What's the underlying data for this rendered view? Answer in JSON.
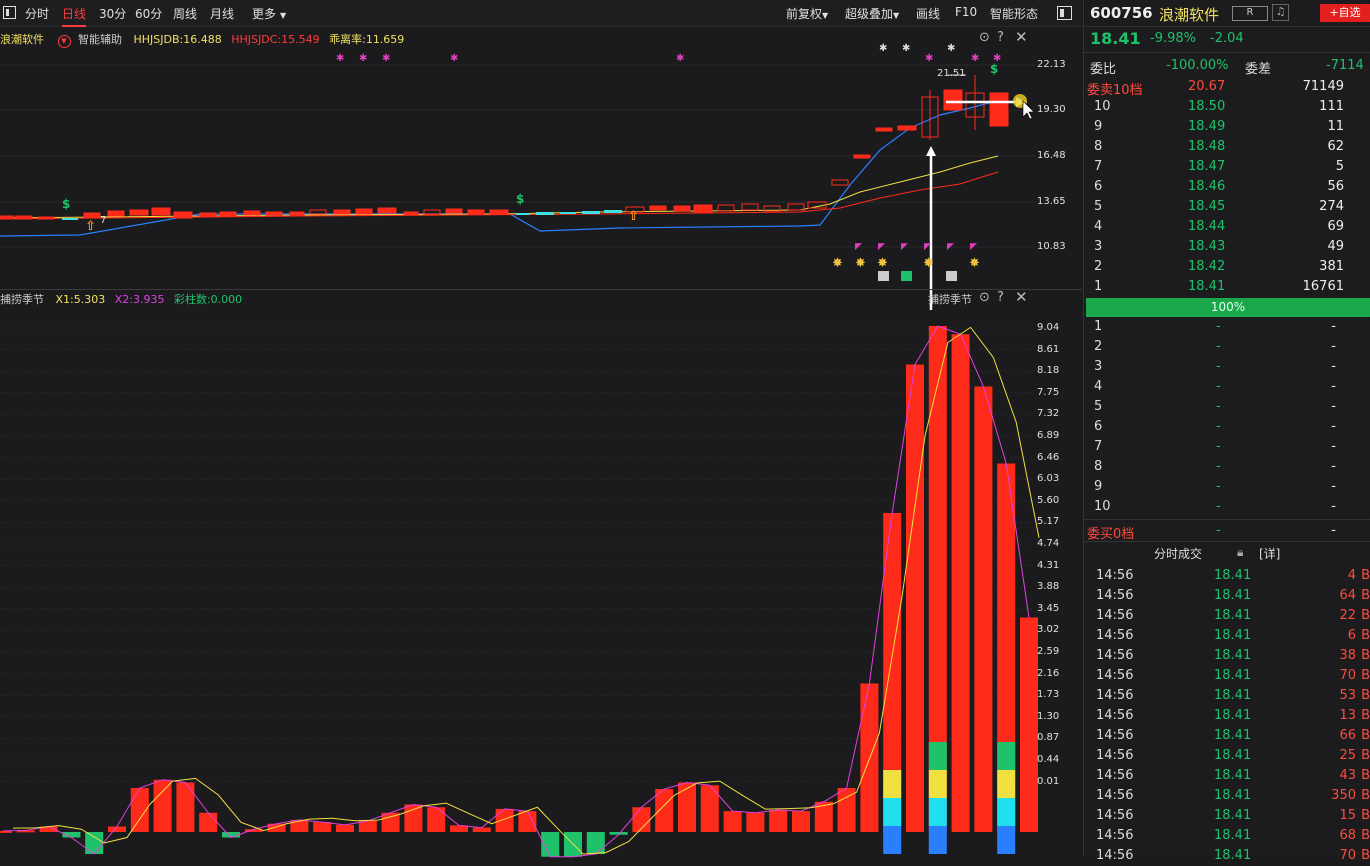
{
  "toolbar": {
    "periods": [
      "分时",
      "日线",
      "30分",
      "60分",
      "周线",
      "月线",
      "更多"
    ],
    "right": [
      "前复权",
      "超级叠加",
      "画线",
      "F10",
      "智能形态"
    ]
  },
  "main_legend": {
    "name": "浪潮软件",
    "assist": "智能辅助",
    "jdb": "HHJSJDB:16.488",
    "jdc": "HHJSJDC:15.549",
    "rate": "乖离率:11.659"
  },
  "main_chart": {
    "peak_label": "21.51",
    "low_label": "7",
    "axis": [
      "22.13",
      "19.30",
      "16.48",
      "13.65",
      "10.83"
    ]
  },
  "sub_legend": {
    "name": "捕捞季节",
    "x1": "X1:5.303",
    "x2": "X2:3.935",
    "colorbars": "彩柱数:0.000",
    "title_right": "捕捞季节"
  },
  "sub_axis": [
    "9.04",
    "8.61",
    "8.18",
    "7.75",
    "7.32",
    "6.89",
    "6.46",
    "6.03",
    "5.60",
    "5.17",
    "4.74",
    "4.31",
    "3.88",
    "3.45",
    "3.02",
    "2.59",
    "2.16",
    "1.73",
    "1.30",
    "0.87",
    "0.44",
    "0.01"
  ],
  "quote": {
    "code": "600756",
    "name": "浪潮软件",
    "badge": "R",
    "add_btn": "+自选",
    "price": "18.41",
    "pct": "-9.98%",
    "chg": "-2.04"
  },
  "ratio": {
    "label1": "委比",
    "val1": "-100.00%",
    "label2": "委差",
    "val2": "-7114"
  },
  "ask_header": {
    "label": "委卖10档",
    "price": "20.67",
    "vol": "71149"
  },
  "asks": [
    {
      "lvl": "10",
      "price": "18.50",
      "vol": "111"
    },
    {
      "lvl": "9",
      "price": "18.49",
      "vol": "11"
    },
    {
      "lvl": "8",
      "price": "18.48",
      "vol": "62"
    },
    {
      "lvl": "7",
      "price": "18.47",
      "vol": "5"
    },
    {
      "lvl": "6",
      "price": "18.46",
      "vol": "56"
    },
    {
      "lvl": "5",
      "price": "18.45",
      "vol": "274"
    },
    {
      "lvl": "4",
      "price": "18.44",
      "vol": "69"
    },
    {
      "lvl": "3",
      "price": "18.43",
      "vol": "49"
    },
    {
      "lvl": "2",
      "price": "18.42",
      "vol": "381"
    },
    {
      "lvl": "1",
      "price": "18.41",
      "vol": "16761"
    }
  ],
  "ratio_bar": "100%",
  "bids": [
    {
      "lvl": "1",
      "price": "-",
      "vol": "-"
    },
    {
      "lvl": "2",
      "price": "-",
      "vol": "-"
    },
    {
      "lvl": "3",
      "price": "-",
      "vol": "-"
    },
    {
      "lvl": "4",
      "price": "-",
      "vol": "-"
    },
    {
      "lvl": "5",
      "price": "-",
      "vol": "-"
    },
    {
      "lvl": "6",
      "price": "-",
      "vol": "-"
    },
    {
      "lvl": "7",
      "price": "-",
      "vol": "-"
    },
    {
      "lvl": "8",
      "price": "-",
      "vol": "-"
    },
    {
      "lvl": "9",
      "price": "-",
      "vol": "-"
    },
    {
      "lvl": "10",
      "price": "-",
      "vol": "-"
    }
  ],
  "bid_header": {
    "label": "委买0档",
    "price": "-",
    "vol": "-"
  },
  "ticks_header": {
    "title": "分时成交",
    "detail": "[详]"
  },
  "ticks": [
    {
      "time": "14:56",
      "price": "18.41",
      "vol": "4",
      "tag": "B"
    },
    {
      "time": "14:56",
      "price": "18.41",
      "vol": "64",
      "tag": "B"
    },
    {
      "time": "14:56",
      "price": "18.41",
      "vol": "22",
      "tag": "B"
    },
    {
      "time": "14:56",
      "price": "18.41",
      "vol": "6",
      "tag": "B"
    },
    {
      "time": "14:56",
      "price": "18.41",
      "vol": "38",
      "tag": "B"
    },
    {
      "time": "14:56",
      "price": "18.41",
      "vol": "70",
      "tag": "B"
    },
    {
      "time": "14:56",
      "price": "18.41",
      "vol": "53",
      "tag": "B"
    },
    {
      "time": "14:56",
      "price": "18.41",
      "vol": "13",
      "tag": "B"
    },
    {
      "time": "14:56",
      "price": "18.41",
      "vol": "66",
      "tag": "B"
    },
    {
      "time": "14:56",
      "price": "18.41",
      "vol": "25",
      "tag": "B"
    },
    {
      "time": "14:56",
      "price": "18.41",
      "vol": "43",
      "tag": "B"
    },
    {
      "time": "14:56",
      "price": "18.41",
      "vol": "350",
      "tag": "B"
    },
    {
      "time": "14:56",
      "price": "18.41",
      "vol": "15",
      "tag": "B"
    },
    {
      "time": "14:56",
      "price": "18.41",
      "vol": "68",
      "tag": "B"
    },
    {
      "time": "14:56",
      "price": "18.41",
      "vol": "70",
      "tag": "B"
    }
  ],
  "colors": {
    "up": "#ff2b1a",
    "down": "#1fc26a",
    "yellow": "#f0e040",
    "blue": "#2a7fff",
    "magenta": "#e040e0"
  },
  "chart_data": {
    "type": "bar",
    "title": "捕捞季节",
    "ylim": [
      -0.4,
      9.6
    ],
    "values": [
      0.02,
      0.03,
      0.1,
      -0.1,
      -0.4,
      0.1,
      0.8,
      0.95,
      0.9,
      0.35,
      -0.1,
      0.05,
      0.15,
      0.22,
      0.18,
      0.13,
      0.2,
      0.35,
      0.5,
      0.45,
      0.12,
      0.08,
      0.42,
      0.38,
      -0.45,
      -0.45,
      -0.4,
      -0.05,
      0.45,
      0.78,
      0.9,
      0.85,
      0.38,
      0.35,
      0.4,
      0.38,
      0.55,
      0.8,
      2.7,
      5.8,
      8.5,
      9.2,
      9.05,
      8.1,
      6.7,
      3.9
    ]
  }
}
